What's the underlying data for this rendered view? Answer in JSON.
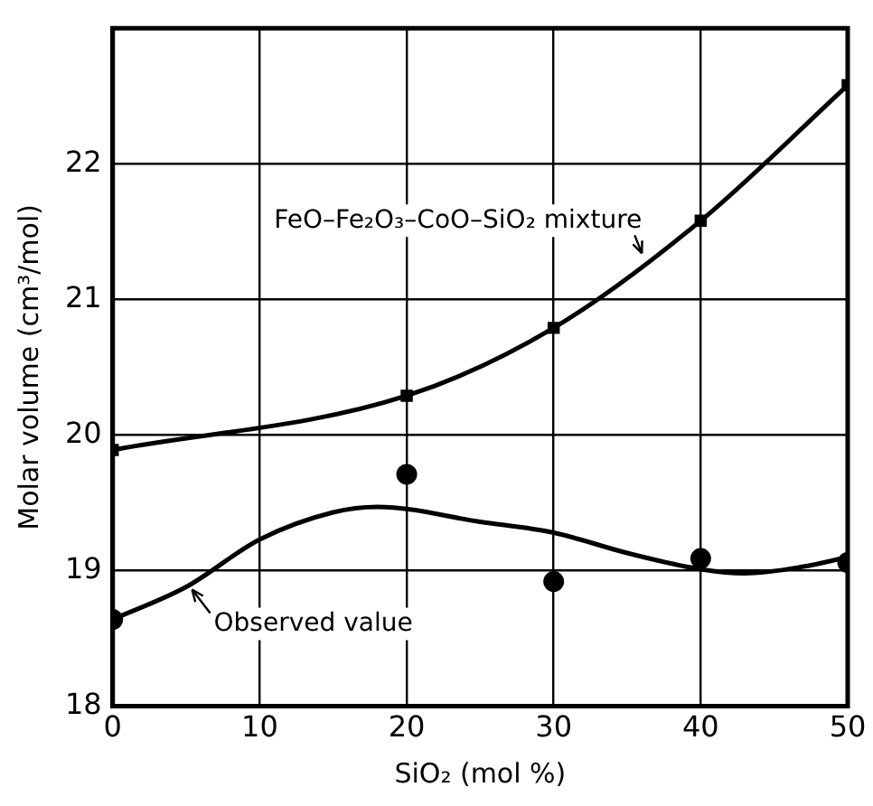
{
  "chart_data": {
    "type": "scatter",
    "xlabel": "SiO₂ (mol %)",
    "ylabel": "Molar volume (cm³/mol)",
    "xlim": [
      0,
      50
    ],
    "xticks": [
      0,
      10,
      20,
      30,
      40,
      50
    ],
    "ylim": [
      18,
      23
    ],
    "yticks": [
      18,
      19,
      20,
      21,
      22
    ],
    "grid": true,
    "legend": false,
    "series": [
      {
        "type": "line",
        "marker": "square",
        "color": "#000000",
        "x": [
          0,
          20,
          30,
          40,
          50
        ],
        "values": [
          19.89,
          20.29,
          20.79,
          21.58,
          22.58
        ]
      },
      {
        "type": "scatter",
        "marker": "circle",
        "color": "#000000",
        "x": [
          0,
          20,
          30,
          40,
          50
        ],
        "values": [
          18.64,
          19.71,
          18.92,
          19.09,
          19.06
        ]
      },
      {
        "type": "line",
        "marker": "none",
        "color": "#000000",
        "x": [
          0,
          5,
          10,
          15,
          18,
          25,
          30,
          35,
          40,
          43,
          47,
          50
        ],
        "values": [
          18.64,
          18.88,
          19.23,
          19.43,
          19.47,
          19.36,
          19.28,
          19.13,
          19.01,
          18.98,
          19.03,
          19.1
        ]
      }
    ],
    "annotations": [
      {
        "text": "FeO–Fe₂O₃–CoO–SiO₂ mixture",
        "x": 36,
        "y": 21.3
      },
      {
        "text": "Observed value",
        "x": 5.4,
        "y": 18.9
      }
    ]
  }
}
